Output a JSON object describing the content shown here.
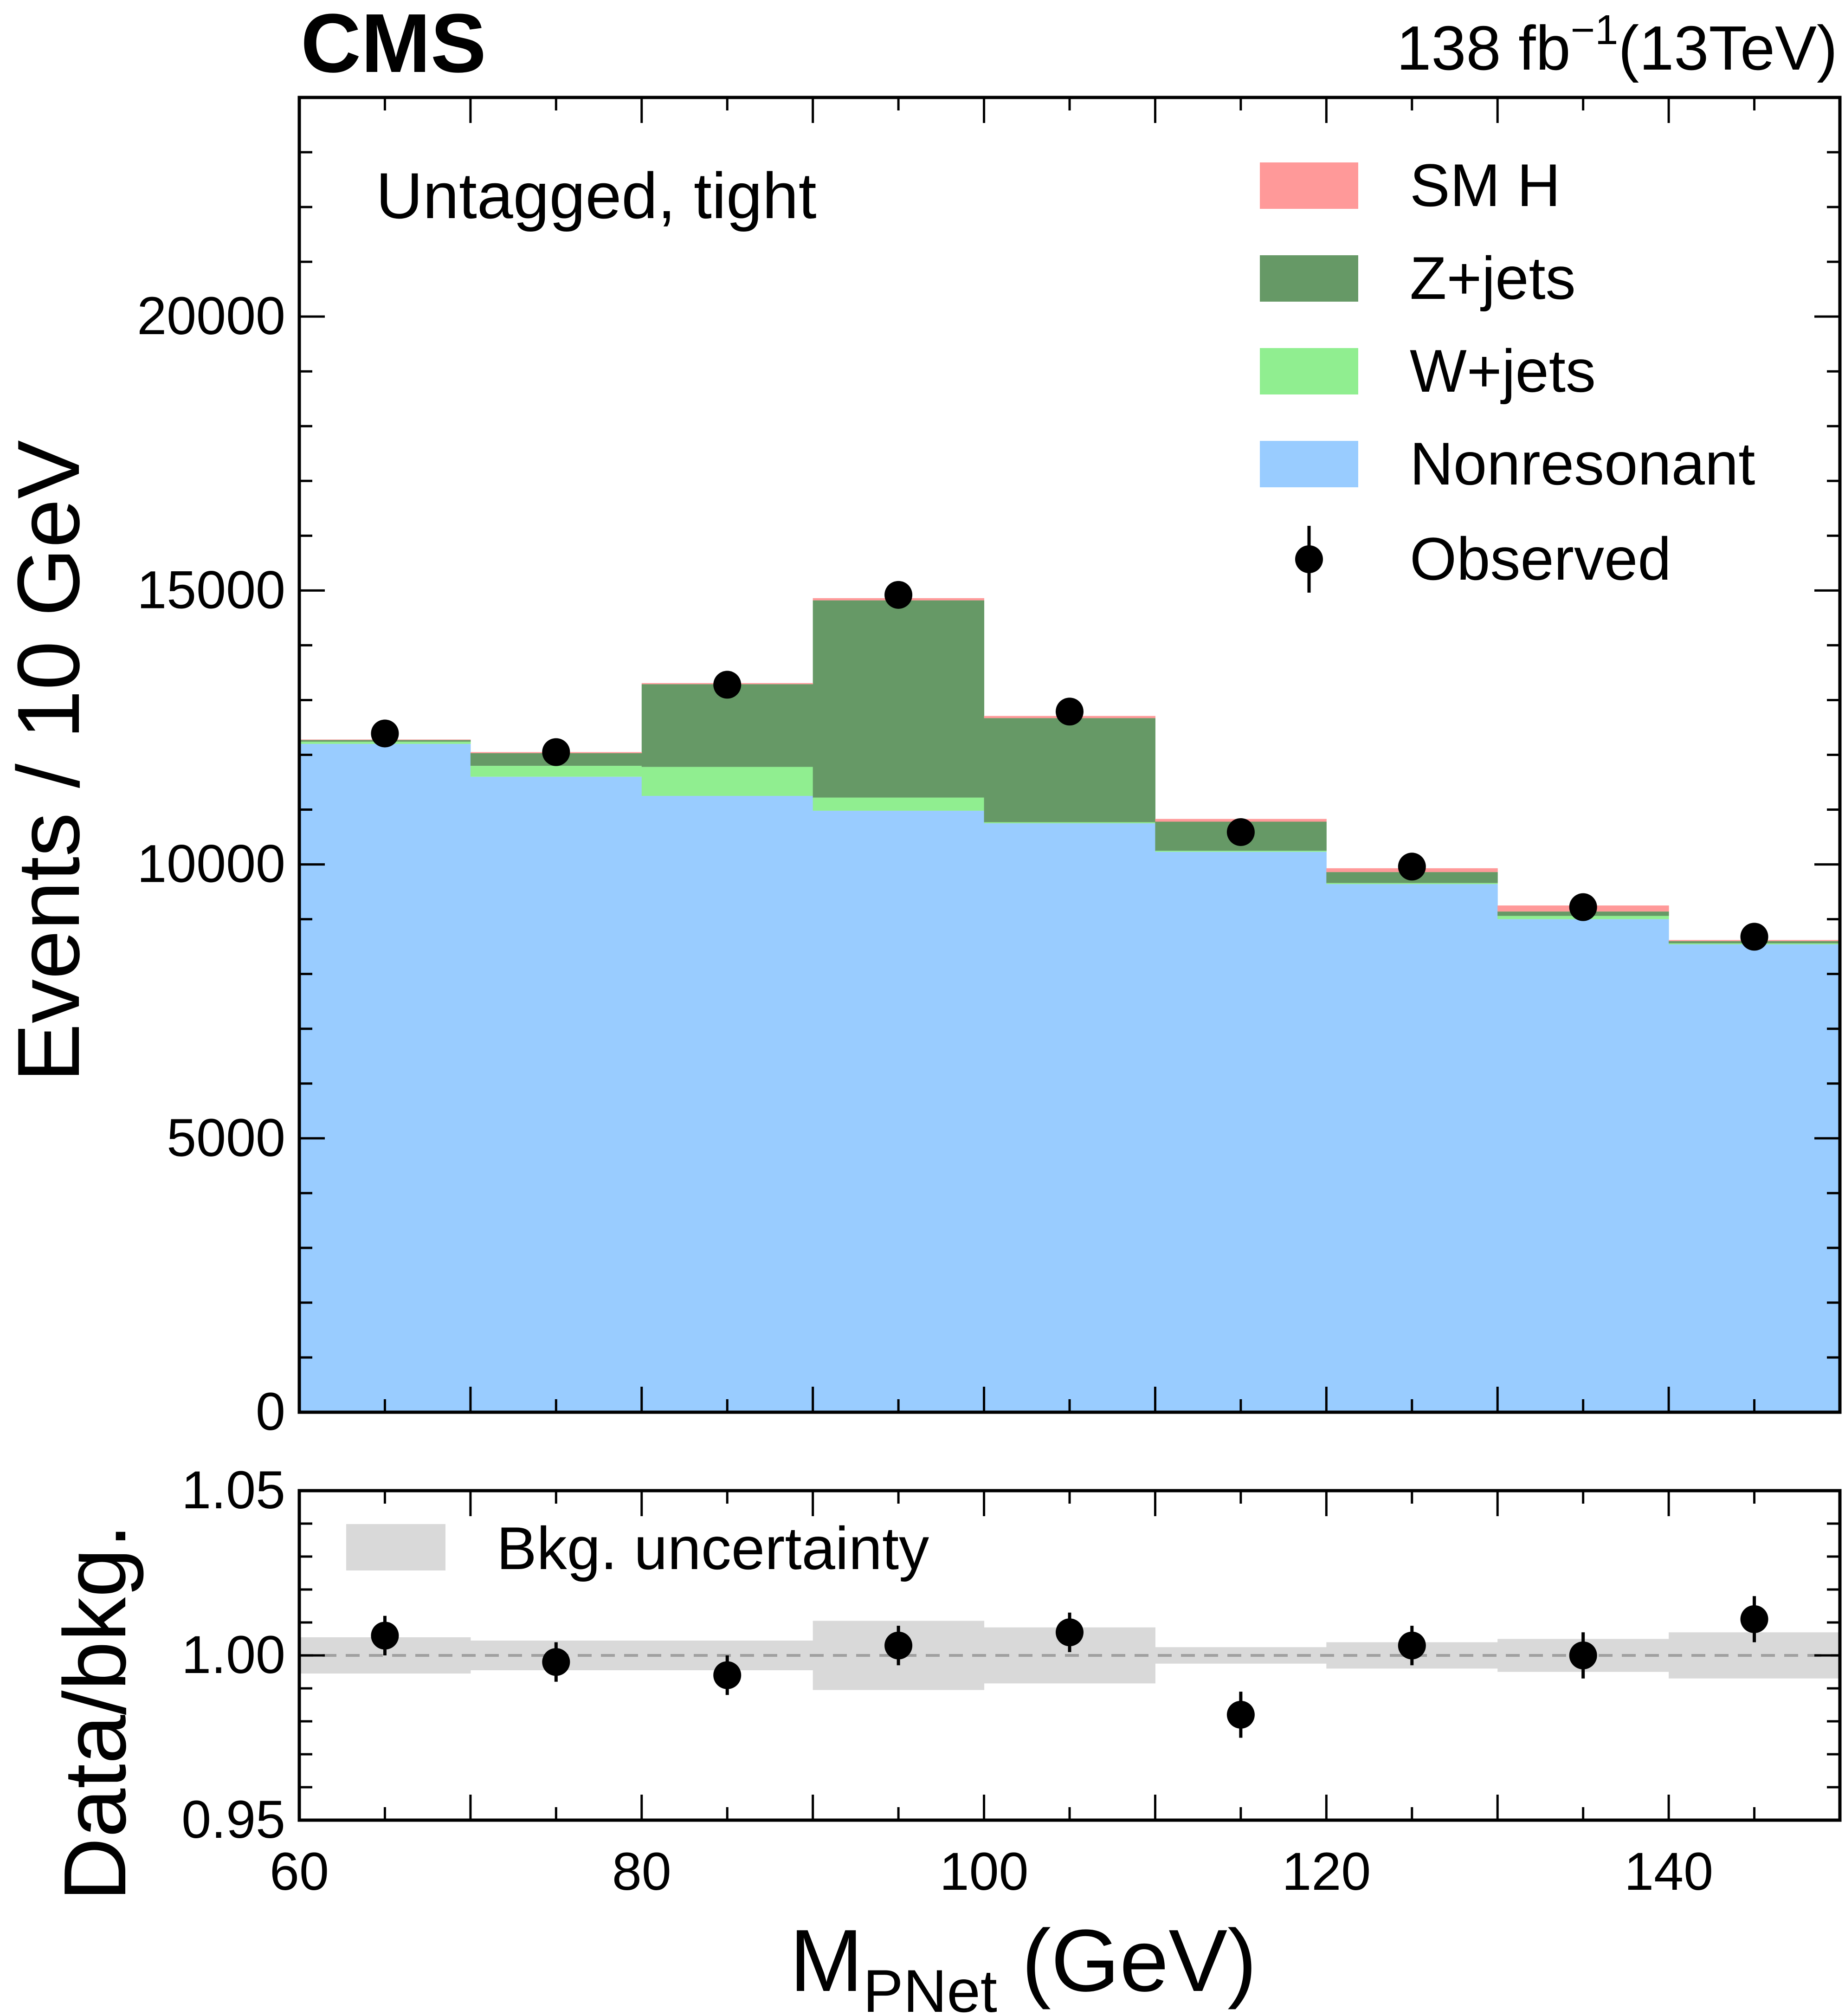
{
  "header": {
    "experiment": "CMS",
    "lumi_value": "138 fb",
    "lumi_exp": "−1",
    "lumi_energy": "(13TeV)"
  },
  "chart_data": [
    {
      "type": "bar",
      "subtype": "stacked-histogram",
      "category_label": "Untagged, tight",
      "xlabel": "M",
      "xlabel_sub": "PNet",
      "xlabel_unit": " (GeV)",
      "ylabel": "Events / 10 GeV",
      "xlim": [
        60,
        150
      ],
      "ylim": [
        0,
        24000
      ],
      "bin_edges": [
        60,
        70,
        80,
        90,
        100,
        110,
        120,
        130,
        140,
        150
      ],
      "x": [
        65,
        75,
        85,
        95,
        105,
        115,
        125,
        135,
        145
      ],
      "yticks": [
        0,
        5000,
        10000,
        15000,
        20000
      ],
      "xticks": [
        60,
        80,
        100,
        120,
        140
      ],
      "series": [
        {
          "name": "Nonresonant",
          "color": "#99ccff",
          "values": [
            12200,
            11600,
            11250,
            10980,
            10750,
            10230,
            9640,
            9000,
            8540
          ]
        },
        {
          "name": "W+jets",
          "color": "#90ee90",
          "values": [
            40,
            200,
            530,
            240,
            20,
            20,
            20,
            60,
            20
          ]
        },
        {
          "name": "Z+jets",
          "color": "#669966",
          "values": [
            30,
            230,
            1510,
            3600,
            1900,
            530,
            200,
            80,
            40
          ]
        },
        {
          "name": "SM H",
          "color": "#ff9999",
          "values": [
            10,
            20,
            20,
            40,
            40,
            50,
            70,
            110,
            20
          ]
        }
      ],
      "observed": {
        "name": "Observed",
        "values": [
          12390,
          12050,
          13280,
          14920,
          12790,
          10590,
          9960,
          9220,
          8680
        ]
      },
      "legend": [
        "SM H",
        "Z+jets",
        "W+jets",
        "Nonresonant",
        "Observed"
      ],
      "legend_position": "top-right",
      "grid": false
    },
    {
      "type": "scatter",
      "subtype": "ratio",
      "ylabel": "Data/bkg.",
      "xlim": [
        60,
        150
      ],
      "ylim": [
        0.95,
        1.05
      ],
      "yticks": [
        "0.95",
        "1.00",
        "1.05"
      ],
      "x": [
        65,
        75,
        85,
        95,
        105,
        115,
        125,
        135,
        145
      ],
      "ratio": [
        1.006,
        0.998,
        0.994,
        1.003,
        1.007,
        0.982,
        1.003,
        1.0,
        1.011
      ],
      "ratio_err": [
        0.006,
        0.006,
        0.006,
        0.006,
        0.006,
        0.007,
        0.006,
        0.007,
        0.007
      ],
      "band_halfwidth": [
        0.0055,
        0.0045,
        0.0045,
        0.0105,
        0.0085,
        0.0025,
        0.004,
        0.005,
        0.007
      ],
      "band_label": "Bkg. uncertainty",
      "band_color": "#d9d9d9",
      "reference_line": 1.0,
      "legend_position": "top-left"
    }
  ]
}
